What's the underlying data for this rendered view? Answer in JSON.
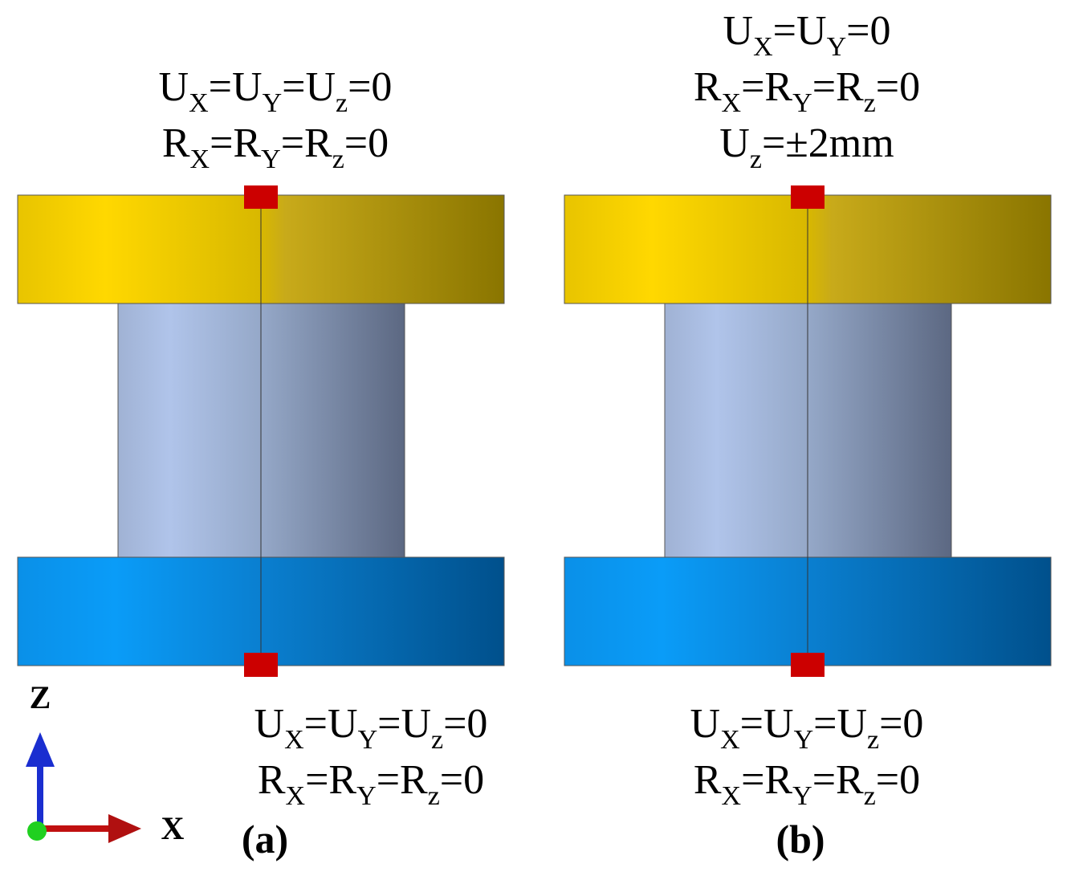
{
  "panels": [
    {
      "top_conditions": [
        [
          "U",
          "X",
          "=U",
          "Y",
          "=U",
          "z",
          "=0"
        ],
        [
          "R",
          "X",
          "=R",
          "Y",
          "=R",
          "z",
          "=0"
        ]
      ],
      "bottom_conditions": [
        [
          "U",
          "X",
          "=U",
          "Y",
          "=U",
          "z",
          "=0"
        ],
        [
          "R",
          "X",
          "=R",
          "Y",
          "=R",
          "z",
          "=0"
        ]
      ],
      "label": "(a)"
    },
    {
      "top_conditions": [
        [
          "U",
          "X",
          "=U",
          "Y",
          "=0"
        ],
        [
          "R",
          "X",
          "=R",
          "Y",
          "=R",
          "z",
          "=0"
        ],
        [
          "U",
          "z",
          "=±2mm"
        ]
      ],
      "bottom_conditions": [
        [
          "U",
          "X",
          "=U",
          "Y",
          "=U",
          "z",
          "=0"
        ],
        [
          "R",
          "X",
          "=R",
          "Y",
          "=R",
          "z",
          "=0"
        ]
      ],
      "label": "(b)"
    }
  ],
  "axes": {
    "z": "Z",
    "x": "X"
  }
}
